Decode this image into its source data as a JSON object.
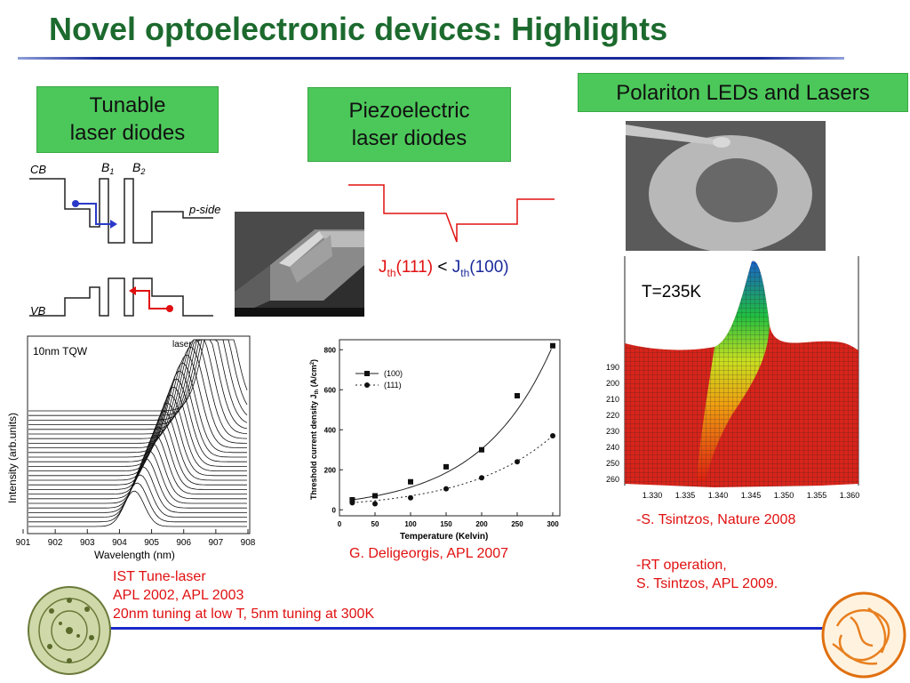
{
  "title": "Novel optoelectronic devices:  Highlights",
  "boxes": {
    "tunable": [
      "Tunable",
      "laser diodes"
    ],
    "piezo": [
      "Piezoelectric",
      "laser diodes"
    ],
    "polariton": "Polariton LEDs and Lasers"
  },
  "band_diagram": {
    "cb": "CB",
    "vb": "VB",
    "b1": "B",
    "b1_sub": "1",
    "b2": "B",
    "b2_sub": "2",
    "pside": "p-side"
  },
  "jth": {
    "j": "J",
    "sub": "th",
    "a": "(111)",
    "lt": "<",
    "b": "(100)"
  },
  "tqw": {
    "label": "10nm TQW",
    "laser": "laser",
    "ylabel": "Intensity (arb.units)",
    "xlabel": "Wavelength (nm)",
    "xticks": [
      "901",
      "902",
      "903",
      "904",
      "905",
      "906",
      "907",
      "908"
    ]
  },
  "chart_data": {
    "type": "scatter",
    "title": "",
    "xlabel": "Temperature (Kelvin)",
    "ylabel": "Threshold current density J",
    "ylabel_sub": "th",
    "ylabel_unit": " (A/cm",
    "ylabel_sup": "2",
    "ylabel_end": ")",
    "xlim": [
      0,
      310
    ],
    "ylim": [
      -30,
      850
    ],
    "xticks": [
      0,
      50,
      100,
      150,
      200,
      250,
      300
    ],
    "yticks": [
      0,
      200,
      400,
      600,
      800
    ],
    "legend_position": "top-left",
    "series": [
      {
        "name": "(100)",
        "marker": "square",
        "line": "solid",
        "x": [
          18,
          50,
          100,
          150,
          200,
          250,
          300
        ],
        "y": [
          50,
          70,
          140,
          215,
          300,
          570,
          820
        ]
      },
      {
        "name": "(111)",
        "marker": "circle",
        "line": "dotted",
        "x": [
          18,
          50,
          100,
          150,
          200,
          250,
          300
        ],
        "y": [
          35,
          30,
          60,
          105,
          160,
          240,
          370
        ]
      }
    ]
  },
  "surface": {
    "temp": "T=235K",
    "yticks": [
      "190",
      "200",
      "210",
      "220",
      "230",
      "240",
      "250",
      "260"
    ],
    "xticks": [
      "1.330",
      "1.335",
      "1.340",
      "1.345",
      "1.350",
      "1.355",
      "1.360"
    ]
  },
  "captions": {
    "ist": [
      "IST Tune-laser",
      "APL 2002, APL 2003",
      "20nm tuning at low T, 5nm tuning at 300K"
    ],
    "deligeorgis": "G. Deligeorgis, APL 2007",
    "tsintzos1": "-S. Tsintzos, Nature 2008",
    "tsintzos2": [
      "-RT operation,",
      "S. Tsintzos, APL 2009."
    ]
  }
}
